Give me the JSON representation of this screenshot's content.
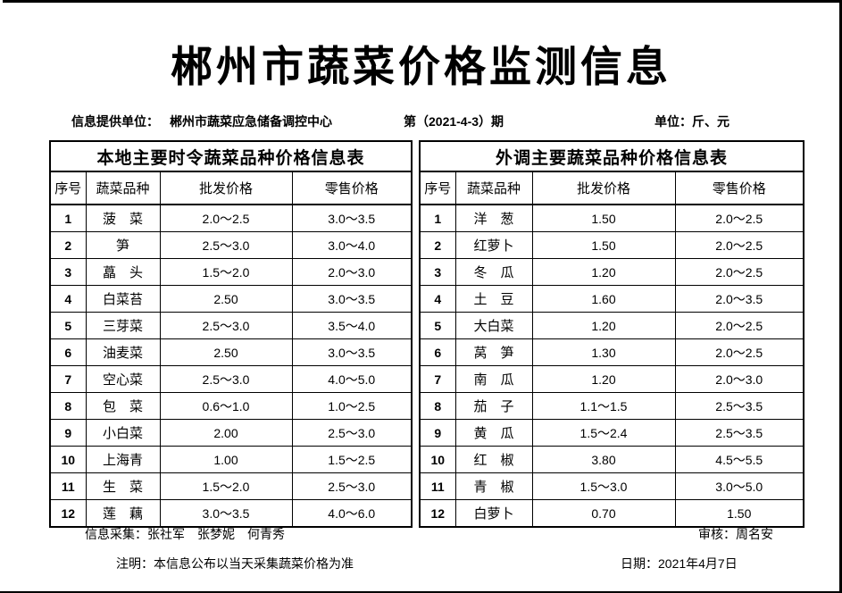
{
  "page": {
    "title": "郴州市蔬菜价格监测信息",
    "info_bar": {
      "provider_label": "信息提供单位：",
      "provider_value": "郴州市蔬菜应急储备调控中心",
      "issue": "第（2021-4-3）期",
      "unit": "单位：斤、元"
    },
    "columns": [
      "序号",
      "蔬菜品种",
      "批发价格",
      "零售价格"
    ],
    "local_table": {
      "title": "本地主要时令蔬菜品种价格信息表",
      "rows": [
        [
          "1",
          "菠　菜",
          "2.0～2.5",
          "3.0～3.5"
        ],
        [
          "2",
          "笋",
          "2.5～3.0",
          "3.0～4.0"
        ],
        [
          "3",
          "藠　头",
          "1.5～2.0",
          "2.0～3.0"
        ],
        [
          "4",
          "白菜苔",
          "2.50",
          "3.0～3.5"
        ],
        [
          "5",
          "三芽菜",
          "2.5～3.0",
          "3.5～4.0"
        ],
        [
          "6",
          "油麦菜",
          "2.50",
          "3.0～3.5"
        ],
        [
          "7",
          "空心菜",
          "2.5～3.0",
          "4.0～5.0"
        ],
        [
          "8",
          "包　菜",
          "0.6～1.0",
          "1.0～2.5"
        ],
        [
          "9",
          "小白菜",
          "2.00",
          "2.5～3.0"
        ],
        [
          "10",
          "上海青",
          "1.00",
          "1.5～2.5"
        ],
        [
          "11",
          "生　菜",
          "1.5～2.0",
          "2.5～3.0"
        ],
        [
          "12",
          "莲　藕",
          "3.0～3.5",
          "4.0～6.0"
        ]
      ]
    },
    "external_table": {
      "title": "外调主要蔬菜品种价格信息表",
      "rows": [
        [
          "1",
          "洋　葱",
          "1.50",
          "2.0～2.5"
        ],
        [
          "2",
          "红萝卜",
          "1.50",
          "2.0～2.5"
        ],
        [
          "3",
          "冬　瓜",
          "1.20",
          "2.0～2.5"
        ],
        [
          "4",
          "土　豆",
          "1.60",
          "2.0～3.5"
        ],
        [
          "5",
          "大白菜",
          "1.20",
          "2.0～2.5"
        ],
        [
          "6",
          "莴　笋",
          "1.30",
          "2.0～2.5"
        ],
        [
          "7",
          "南　瓜",
          "1.20",
          "2.0～3.0"
        ],
        [
          "8",
          "茄　子",
          "1.1～1.5",
          "2.5～3.5"
        ],
        [
          "9",
          "黄　瓜",
          "1.5～2.4",
          "2.5～3.5"
        ],
        [
          "10",
          "红　椒",
          "3.80",
          "4.5～5.5"
        ],
        [
          "11",
          "青　椒",
          "1.5～3.0",
          "3.0～5.0"
        ],
        [
          "12",
          "白萝卜",
          "0.70",
          "1.50"
        ]
      ]
    },
    "footer": {
      "collectors": "信息采集：张社军　张梦妮　何青秀",
      "reviewer": "审核：周名安",
      "note": "注明：本信息公布以当天采集蔬菜价格为准",
      "date": "日期：2021年4月7日"
    }
  }
}
